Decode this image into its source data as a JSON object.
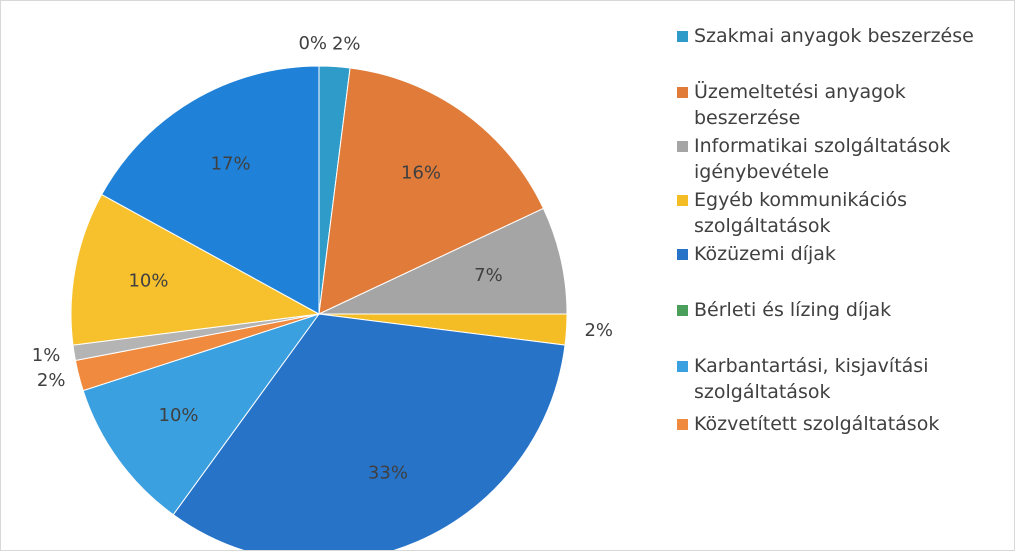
{
  "chart_data": {
    "type": "pie",
    "values": [
      2,
      16,
      7,
      2,
      33,
      10,
      2,
      1,
      10,
      17,
      0
    ],
    "value_labels": [
      "2%",
      "16%",
      "7%",
      "2%",
      "33%",
      "10%",
      "2%",
      "1%",
      "10%",
      "17%",
      "0%"
    ],
    "colors": [
      "#2f9bc8",
      "#e07b39",
      "#a5a5a5",
      "#f5bd25",
      "#2673c8",
      "#3aa0e0",
      "#f08a3e",
      "#b4b4b4",
      "#f7c12d",
      "#1f82d8",
      "#4aa05a"
    ],
    "legend": [
      {
        "name": "Szakmai anyagok beszerzése",
        "color": "#2f9bc8"
      },
      {
        "name": "Üzemeltetési anyagok beszerzése",
        "color": "#e07b39"
      },
      {
        "name": "Informatikai szolgáltatások igénybevétele",
        "color": "#a5a5a5"
      },
      {
        "name": "Egyéb kommunikációs szolgáltatások",
        "color": "#f5bd25"
      },
      {
        "name": "Közüzemi díjak",
        "color": "#2673c8"
      },
      {
        "name": "Bérleti és lízing díjak",
        "color": "#4aa05a"
      },
      {
        "name": "Karbantartási, kisjavítási szolgáltatások",
        "color": "#3aa0e0"
      },
      {
        "name": "Közvetített szolgáltatások",
        "color": "#f08a3e"
      }
    ]
  }
}
